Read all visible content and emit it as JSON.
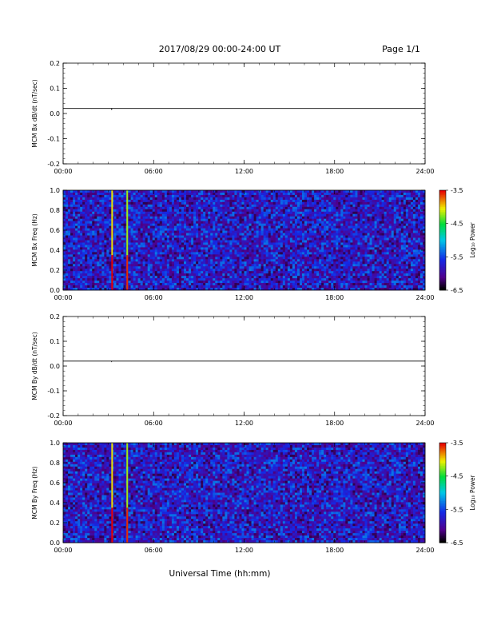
{
  "header": {
    "title": "2017/08/29  00:00-24:00 UT",
    "page": "Page 1/1"
  },
  "xlabel": "Universal Time (hh:mm)",
  "chart_data": [
    {
      "type": "line",
      "ylabel": "MCM Bx dB/dt (nT/sec)",
      "xlim": [
        "00:00",
        "24:00"
      ],
      "ylim": [
        -0.2,
        0.2
      ],
      "xticks": [
        "00:00",
        "06:00",
        "12:00",
        "18:00",
        "24:00"
      ],
      "yticks": [
        "-0.2",
        "-0.1",
        "0.0",
        "0.1",
        "0.2"
      ],
      "series": [
        {
          "x": [
            "00:00",
            "03:12",
            "03:13",
            "03:14",
            "04:10",
            "24:00"
          ],
          "values": [
            0.02,
            0.02,
            0.015,
            0.02,
            0.02,
            0.02
          ]
        }
      ]
    },
    {
      "type": "heatmap",
      "ylabel": "MCM Bx Freq (Hz)",
      "xlim": [
        "00:00",
        "24:00"
      ],
      "ylim": [
        0.0,
        1.0
      ],
      "xticks": [
        "00:00",
        "06:00",
        "12:00",
        "18:00",
        "24:00"
      ],
      "yticks": [
        "0.0",
        "0.2",
        "0.4",
        "0.6",
        "0.8",
        "1.0"
      ],
      "colorbar": {
        "label": "Log₁₀ Power",
        "ticks": [
          "-3.5",
          "-4.5",
          "-5.5",
          "-6.5"
        ],
        "range": [
          -6.5,
          -3.5
        ]
      },
      "background_log_power": -5.8,
      "features": [
        {
          "time": "03:15",
          "log_power": -4.0,
          "low_freq_log_power": -3.5,
          "low_freq_below_hz": 0.35
        },
        {
          "time": "04:15",
          "log_power": -4.2,
          "low_freq_log_power": -3.6,
          "low_freq_below_hz": 0.35
        }
      ]
    },
    {
      "type": "line",
      "ylabel": "MCM By dB/dt (nT/sec)",
      "xlim": [
        "00:00",
        "24:00"
      ],
      "ylim": [
        -0.2,
        0.2
      ],
      "xticks": [
        "00:00",
        "06:00",
        "12:00",
        "18:00",
        "24:00"
      ],
      "yticks": [
        "-0.2",
        "-0.1",
        "0.0",
        "0.1",
        "0.2"
      ],
      "series": [
        {
          "x": [
            "00:00",
            "03:12",
            "03:13",
            "03:14",
            "04:10",
            "24:00"
          ],
          "values": [
            0.02,
            0.02,
            0.018,
            0.02,
            0.02,
            0.02
          ]
        }
      ]
    },
    {
      "type": "heatmap",
      "ylabel": "MCM By Freq (Hz)",
      "xlim": [
        "00:00",
        "24:00"
      ],
      "ylim": [
        0.0,
        1.0
      ],
      "xticks": [
        "00:00",
        "06:00",
        "12:00",
        "18:00",
        "24:00"
      ],
      "yticks": [
        "0.0",
        "0.2",
        "0.4",
        "0.6",
        "0.8",
        "1.0"
      ],
      "colorbar": {
        "label": "Log₁₀ Power",
        "ticks": [
          "-3.5",
          "-4.5",
          "-5.5",
          "-6.5"
        ],
        "range": [
          -6.5,
          -3.5
        ]
      },
      "background_log_power": -5.8,
      "features": [
        {
          "time": "03:15",
          "log_power": -4.0,
          "low_freq_log_power": -3.5,
          "low_freq_below_hz": 0.35
        },
        {
          "time": "04:15",
          "log_power": -4.2,
          "low_freq_log_power": -3.6,
          "low_freq_below_hz": 0.35
        }
      ]
    }
  ]
}
